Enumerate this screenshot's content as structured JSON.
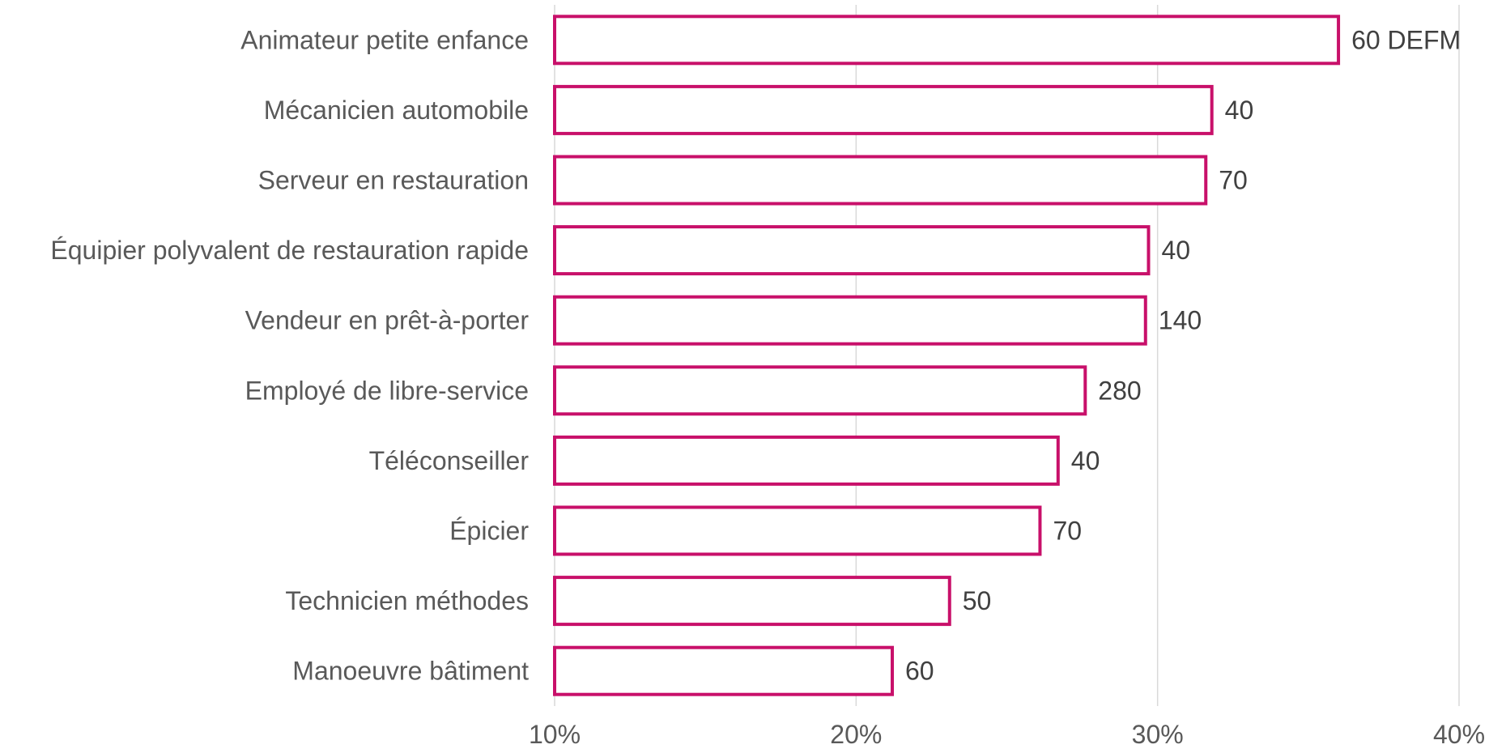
{
  "chart_data": {
    "type": "bar",
    "orientation": "horizontal",
    "categories": [
      "Animateur petite enfance",
      "Mécanicien automobile",
      "Serveur en restauration",
      "Équipier polyvalent de restauration rapide",
      "Vendeur en prêt-à-porter",
      "Employé de libre-service",
      "Téléconseiller",
      "Épicier",
      "Technicien méthodes",
      "Manoeuvre bâtiment"
    ],
    "values": [
      36.0,
      31.8,
      31.6,
      29.7,
      29.6,
      27.6,
      26.7,
      26.1,
      23.1,
      21.2
    ],
    "data_labels": [
      "60 DEFM",
      "40",
      "70",
      "40",
      "140",
      "280",
      "40",
      "70",
      "50",
      "60"
    ],
    "x_ticks": [
      "10%",
      "20%",
      "30%",
      "40%"
    ],
    "xlim": [
      10,
      40
    ],
    "grid": true,
    "colors": {
      "bar_outline": "#c8106a",
      "bar_fill": "#ffffff",
      "grid": "#d9d9d9"
    }
  }
}
